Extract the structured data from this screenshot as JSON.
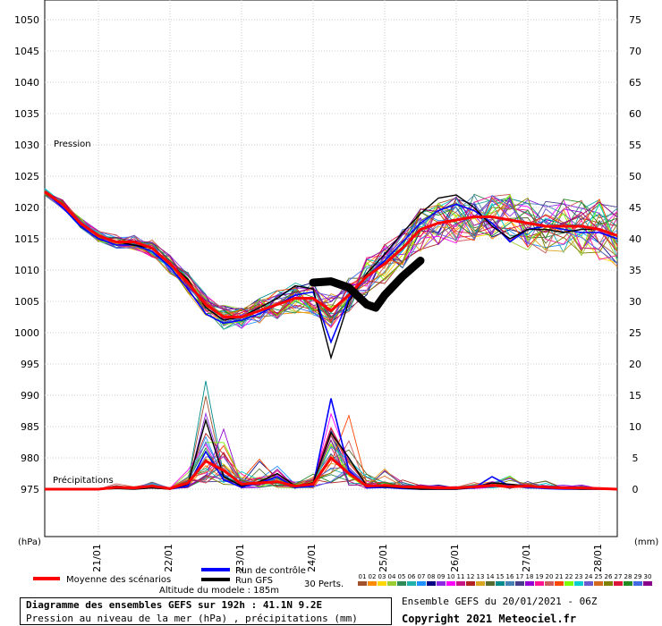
{
  "chart_data": {
    "type": "line",
    "title": "Diagramme des ensembles GEFS sur 192h : 41.1N 9.2E",
    "subtitle": "Pression au niveau de la mer (hPa) , précipitations (mm)",
    "altitude_label": "Altitude du modele : 185m",
    "ensemble_label": "Ensemble GEFS du 20/01/2021 - 06Z",
    "copyright": "Copyright 2021 Meteociel.fr",
    "left_axis": {
      "unit": "(hPa)",
      "ticks": [
        1050,
        1045,
        1040,
        1035,
        1030,
        1025,
        1020,
        1015,
        1010,
        1005,
        1000,
        995,
        990,
        985,
        980,
        975
      ],
      "ylim": [
        968,
        1050
      ]
    },
    "right_axis": {
      "unit": "(mm)",
      "ticks": [
        75,
        70,
        65,
        60,
        55,
        50,
        45,
        40,
        35,
        30,
        25,
        20,
        15,
        10,
        5,
        0
      ]
    },
    "pressure_label": "Pression",
    "precip_label": "Précipitations",
    "x_ticks": [
      "21/01",
      "22/01",
      "23/01",
      "24/01",
      "25/01",
      "26/01",
      "27/01",
      "28/01"
    ],
    "grid": true,
    "legend": {
      "mean": "Moyenne des scénarios",
      "control": "Run de contrôle",
      "gfs": "Run GFS",
      "perts": "30 Perts.",
      "member_labels": [
        "01",
        "02",
        "03",
        "04",
        "05",
        "06",
        "07",
        "08",
        "09",
        "10",
        "11",
        "12",
        "13",
        "14",
        "15",
        "16",
        "17",
        "18",
        "19",
        "20",
        "21",
        "22",
        "23",
        "24",
        "25",
        "26",
        "27",
        "28",
        "29",
        "30"
      ],
      "member_colors": [
        "#a0522d",
        "#ff8c00",
        "#ffd700",
        "#9acd32",
        "#2e8b57",
        "#20b2aa",
        "#1e90ff",
        "#000080",
        "#8a2be2",
        "#ff00ff",
        "#c71585",
        "#b22222",
        "#daa520",
        "#556b2f",
        "#008b8b",
        "#4682b4",
        "#483d8b",
        "#9400d3",
        "#ff1493",
        "#cd5c5c",
        "#ff4500",
        "#7cfc00",
        "#00ced1",
        "#6a5acd",
        "#d2691e",
        "#808000",
        "#dc143c",
        "#228b22",
        "#4169e1",
        "#8b008b"
      ]
    },
    "x_hours": [
      0,
      6,
      12,
      18,
      24,
      30,
      36,
      42,
      48,
      54,
      60,
      66,
      72,
      78,
      84,
      90,
      96,
      102,
      108,
      114,
      120,
      126,
      132,
      138,
      144,
      150,
      156,
      162,
      168,
      174,
      180,
      186,
      192
    ],
    "series": [
      {
        "name": "Moyenne des scénarios",
        "color": "#ff0000",
        "values": [
          1022.5,
          1020.5,
          1017.5,
          1015.5,
          1014.5,
          1014.5,
          1013.5,
          1011.0,
          1008.0,
          1004.5,
          1002.5,
          1002.5,
          1003.5,
          1004.5,
          1005.5,
          1005.5,
          1003.5,
          1006.0,
          1009.0,
          1011.0,
          1013.5,
          1016.5,
          1017.5,
          1018.0,
          1018.5,
          1018.5,
          1018.0,
          1017.5,
          1017.0,
          1017.0,
          1017.0,
          1016.5,
          1015.5
        ]
      },
      {
        "name": "Run de contrôle",
        "color": "#0000ff",
        "values": [
          1022.5,
          1020.0,
          1017.0,
          1015.0,
          1014.0,
          1014.0,
          1013.0,
          1010.5,
          1007.0,
          1003.0,
          1001.5,
          1002.0,
          1003.0,
          1004.5,
          1006.0,
          1006.5,
          998.5,
          1005.5,
          1009.0,
          1011.5,
          1014.5,
          1017.5,
          1019.5,
          1020.5,
          1019.5,
          1017.5,
          1014.5,
          1016.5,
          1017.0,
          1016.5,
          1016.0,
          1016.0,
          1015.0
        ]
      },
      {
        "name": "Run GFS",
        "color": "#000000",
        "values": [
          1022.5,
          1020.5,
          1017.5,
          1015.5,
          1014.5,
          1014.0,
          1013.5,
          1011.0,
          1008.5,
          1004.0,
          1002.0,
          1002.5,
          1004.0,
          1005.5,
          1007.5,
          1007.0,
          996.0,
          1005.0,
          1009.5,
          1012.5,
          1016.0,
          1019.0,
          1021.5,
          1022.0,
          1020.0,
          1017.0,
          1015.0,
          1016.5,
          1016.5,
          1016.0,
          1016.5,
          1016.5,
          1015.5
        ]
      }
    ],
    "precip_series": [
      {
        "name": "Moyenne des scénarios",
        "color": "#ff0000",
        "values": [
          0,
          0,
          0,
          0,
          0.3,
          0.2,
          0.5,
          0.1,
          1.0,
          4.5,
          3.0,
          0.8,
          1.0,
          1.2,
          0.5,
          0.8,
          5.0,
          2.5,
          0.5,
          0.6,
          0.4,
          0.3,
          0.2,
          0.2,
          0.4,
          0.6,
          0.4,
          0.5,
          0.3,
          0.2,
          0.2,
          0.1,
          0
        ]
      },
      {
        "name": "Run de contrôle",
        "color": "#0000ff",
        "values": [
          0,
          0,
          0,
          0,
          0.2,
          0.1,
          0.3,
          0,
          0.5,
          6.0,
          1.5,
          0.3,
          1.0,
          2.0,
          0.3,
          0.5,
          14.5,
          3.0,
          0.2,
          0.3,
          0.1,
          0,
          0,
          0,
          0.2,
          2.0,
          0.5,
          0.3,
          0.1,
          0,
          0,
          0,
          0
        ]
      },
      {
        "name": "Run GFS",
        "color": "#000000",
        "values": [
          0,
          0,
          0,
          0,
          0.1,
          0,
          0.2,
          0,
          0.8,
          11.0,
          2.0,
          0.5,
          1.2,
          2.5,
          0.5,
          1.0,
          9.0,
          5.0,
          0.5,
          0.4,
          0.2,
          0,
          0,
          0,
          0.3,
          1.0,
          0.8,
          0.5,
          0.2,
          0.1,
          0,
          0,
          0
        ]
      }
    ],
    "precip_max": [
      0,
      0,
      0,
      0,
      2,
      1,
      3,
      1,
      5,
      20,
      12,
      4,
      6,
      6,
      2,
      4,
      20,
      14,
      4,
      6,
      3,
      2,
      2,
      2,
      3,
      5,
      4,
      4,
      3,
      2,
      2,
      1,
      0
    ]
  }
}
